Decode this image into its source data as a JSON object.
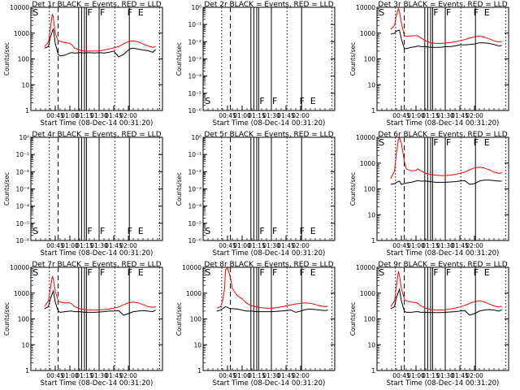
{
  "figure": {
    "x_title": "Start Time (08-Dec-14 00:31:20)",
    "y_title": "Counts/sec",
    "x_ticks": [
      "00:45",
      "01:00",
      "01:15",
      "01:30",
      "01:45",
      "02:00"
    ],
    "colors": {
      "events": "#000000",
      "lld": "#ff0000",
      "background": "#ffffff"
    }
  },
  "chart_data": [
    {
      "type": "line",
      "title": "Det 1r BLACK = Events, RED = LLD",
      "x_time_labels": [
        "00:45",
        "01:00",
        "01:15",
        "01:30",
        "01:45",
        "02:00"
      ],
      "y_scale": "log",
      "ylim": [
        1,
        10000
      ],
      "y_ticks": [
        "1",
        "10",
        "100",
        "1000",
        "10000"
      ],
      "markers": [
        "S",
        "F",
        "F",
        "F",
        "E"
      ],
      "grid": false,
      "series": [
        {
          "name": "Events",
          "color": "#000000",
          "x_min": [
            34,
            38,
            40,
            43,
            45,
            48,
            50,
            55,
            60,
            62,
            64,
            67,
            70,
            75,
            80,
            85,
            90,
            95,
            100,
            105,
            110,
            115,
            120,
            122,
            125,
            130,
            135,
            140,
            145,
            148
          ],
          "y": [
            260,
            300,
            700,
            1500,
            400,
            150,
            130,
            140,
            170,
            175,
            170,
            170,
            175,
            170,
            175,
            170,
            175,
            170,
            180,
            200,
            120,
            150,
            220,
            250,
            260,
            240,
            220,
            210,
            180,
            230
          ]
        },
        {
          "name": "LLD",
          "color": "#ff0000",
          "x_min": [
            34,
            38,
            40,
            42,
            43,
            45,
            48,
            50,
            55,
            60,
            62,
            65,
            70,
            75,
            80,
            85,
            90,
            95,
            100,
            105,
            110,
            115,
            120,
            125,
            130,
            135,
            140,
            145,
            148
          ],
          "y": [
            300,
            450,
            1500,
            5500,
            4000,
            1000,
            500,
            480,
            430,
            400,
            350,
            260,
            220,
            200,
            200,
            200,
            205,
            220,
            240,
            270,
            300,
            380,
            470,
            500,
            460,
            380,
            320,
            280,
            300
          ]
        }
      ]
    },
    {
      "type": "line",
      "title": "Det 2r BLACK = Events, RED = LLD",
      "x_time_labels": [
        "00:45",
        "01:00",
        "01:15",
        "01:30",
        "01:45",
        "02:00"
      ],
      "y_scale": "log",
      "y_ticks": [
        "10⁻⁶",
        "10⁻⁵",
        "10⁻⁴",
        "10⁻³",
        "10⁻²",
        "10⁻¹",
        "10⁰"
      ],
      "markers": [
        "S",
        "F",
        "F",
        "F",
        "E"
      ],
      "grid": false,
      "series": []
    },
    {
      "type": "line",
      "title": "Det 3r BLACK = Events, RED = LLD",
      "x_time_labels": [
        "00:45",
        "01:00",
        "01:15",
        "01:30",
        "01:45",
        "02:00"
      ],
      "y_scale": "log",
      "ylim": [
        1,
        10000
      ],
      "y_ticks": [
        "1",
        "10",
        "100",
        "1000",
        "10000"
      ],
      "markers": [
        "S",
        "F",
        "F",
        "F",
        "E"
      ],
      "grid": false,
      "series": [
        {
          "name": "Events",
          "color": "#000000",
          "x_min": [
            34,
            38,
            40,
            43,
            45,
            48,
            50,
            55,
            60,
            62,
            65,
            70,
            75,
            80,
            85,
            90,
            95,
            100,
            105,
            110,
            115,
            120,
            125,
            130,
            135,
            140,
            145,
            148
          ],
          "y": [
            900,
            1000,
            1200,
            1300,
            600,
            250,
            250,
            280,
            300,
            320,
            300,
            300,
            280,
            280,
            280,
            300,
            300,
            320,
            350,
            350,
            360,
            380,
            420,
            420,
            400,
            360,
            320,
            330
          ]
        },
        {
          "name": "LLD",
          "color": "#ff0000",
          "x_min": [
            34,
            38,
            40,
            42,
            43,
            45,
            48,
            50,
            55,
            60,
            62,
            65,
            70,
            75,
            80,
            85,
            90,
            95,
            100,
            105,
            110,
            115,
            120,
            125,
            130,
            135,
            140,
            145,
            148
          ],
          "y": [
            1400,
            2000,
            5000,
            9000,
            7000,
            2500,
            800,
            750,
            780,
            800,
            780,
            650,
            500,
            420,
            400,
            400,
            410,
            430,
            460,
            500,
            560,
            640,
            720,
            760,
            700,
            600,
            500,
            450,
            480
          ]
        }
      ]
    },
    {
      "type": "line",
      "title": "Det 4r BLACK = Events, RED = LLD",
      "x_time_labels": [
        "00:45",
        "01:00",
        "01:15",
        "01:30",
        "01:45",
        "02:00"
      ],
      "y_scale": "log",
      "y_ticks": [
        "10⁻⁶",
        "10⁻⁵",
        "10⁻⁴",
        "10⁻³",
        "10⁻²",
        "10⁻¹",
        "10⁰"
      ],
      "markers": [
        "S",
        "F",
        "F",
        "F",
        "E"
      ],
      "grid": false,
      "series": []
    },
    {
      "type": "line",
      "title": "Det 5r BLACK = Events, RED = LLD",
      "x_time_labels": [
        "00:45",
        "01:00",
        "01:15",
        "01:30",
        "01:45",
        "02:00"
      ],
      "y_scale": "log",
      "y_ticks": [
        "10⁻⁶",
        "10⁻⁵",
        "10⁻⁴",
        "10⁻³",
        "10⁻²",
        "10⁻¹",
        "10⁰"
      ],
      "markers": [
        "S",
        "F",
        "F",
        "F",
        "E"
      ],
      "grid": false,
      "series": []
    },
    {
      "type": "line",
      "title": "Det 6r BLACK = Events, RED = LLD",
      "x_time_labels": [
        "00:45",
        "01:00",
        "01:15",
        "01:30",
        "01:45",
        "02:00"
      ],
      "y_scale": "log",
      "ylim": [
        1,
        10000
      ],
      "y_ticks": [
        "1",
        "10",
        "100",
        "1000",
        "10000"
      ],
      "markers": [
        "S",
        "F",
        "F",
        "F",
        "E"
      ],
      "grid": false,
      "series": [
        {
          "name": "Events",
          "color": "#000000",
          "x_min": [
            34,
            38,
            40,
            43,
            45,
            48,
            50,
            55,
            60,
            62,
            65,
            70,
            75,
            80,
            85,
            90,
            95,
            100,
            105,
            110,
            115,
            120,
            125,
            130,
            135,
            140,
            145,
            148
          ],
          "y": [
            150,
            160,
            180,
            200,
            150,
            160,
            170,
            180,
            200,
            210,
            200,
            200,
            190,
            180,
            180,
            180,
            185,
            190,
            200,
            210,
            150,
            160,
            200,
            220,
            220,
            210,
            200,
            200
          ]
        },
        {
          "name": "LLD",
          "color": "#ff0000",
          "x_min": [
            34,
            38,
            40,
            42,
            43,
            45,
            48,
            50,
            55,
            60,
            62,
            65,
            70,
            75,
            80,
            85,
            90,
            95,
            100,
            105,
            110,
            115,
            120,
            125,
            130,
            135,
            140,
            145,
            148
          ],
          "y": [
            250,
            500,
            2500,
            8500,
            9500,
            6000,
            1200,
            600,
            500,
            520,
            600,
            500,
            400,
            360,
            340,
            330,
            330,
            340,
            360,
            400,
            450,
            550,
            650,
            700,
            650,
            550,
            450,
            400,
            420
          ]
        }
      ]
    },
    {
      "type": "line",
      "title": "Det 7r BLACK = Events, RED = LLD",
      "x_time_labels": [
        "00:45",
        "01:00",
        "01:15",
        "01:30",
        "01:45",
        "02:00"
      ],
      "y_scale": "log",
      "ylim": [
        1,
        10000
      ],
      "y_ticks": [
        "1",
        "10",
        "100",
        "1000",
        "10000"
      ],
      "markers": [
        "S",
        "F",
        "F",
        "F",
        "E"
      ],
      "grid": false,
      "series": [
        {
          "name": "Events",
          "color": "#000000",
          "x_min": [
            34,
            38,
            40,
            43,
            45,
            48,
            50,
            55,
            60,
            62,
            65,
            70,
            75,
            80,
            85,
            90,
            95,
            100,
            105,
            110,
            115,
            120,
            125,
            130,
            135,
            140,
            145,
            148
          ],
          "y": [
            250,
            300,
            600,
            1200,
            450,
            200,
            180,
            190,
            200,
            200,
            190,
            190,
            180,
            180,
            180,
            185,
            190,
            200,
            200,
            210,
            140,
            160,
            190,
            200,
            210,
            200,
            190,
            220
          ]
        },
        {
          "name": "LLD",
          "color": "#ff0000",
          "x_min": [
            34,
            38,
            40,
            42,
            43,
            45,
            48,
            50,
            55,
            60,
            62,
            65,
            70,
            75,
            80,
            85,
            90,
            95,
            100,
            105,
            110,
            115,
            120,
            125,
            130,
            135,
            140,
            145,
            148
          ],
          "y": [
            300,
            500,
            1500,
            4500,
            3500,
            1200,
            500,
            450,
            420,
            420,
            380,
            300,
            250,
            230,
            220,
            220,
            225,
            230,
            240,
            260,
            290,
            350,
            420,
            450,
            420,
            360,
            300,
            280,
            300
          ]
        }
      ]
    },
    {
      "type": "line",
      "title": "Det 8r BLACK = Events, RED = LLD",
      "x_time_labels": [
        "00:45",
        "01:00",
        "01:15",
        "01:30",
        "01:45",
        "02:00"
      ],
      "y_scale": "log",
      "ylim": [
        1,
        10000
      ],
      "y_ticks": [
        "1",
        "10",
        "100",
        "1000",
        "10000"
      ],
      "markers": [
        "S",
        "F",
        "F",
        "F",
        "E"
      ],
      "grid": false,
      "series": [
        {
          "name": "Events",
          "color": "#000000",
          "x_min": [
            34,
            38,
            40,
            43,
            45,
            48,
            50,
            55,
            60,
            62,
            65,
            70,
            75,
            80,
            85,
            90,
            95,
            100,
            105,
            110,
            115,
            120,
            125,
            130,
            135,
            140,
            145,
            148
          ],
          "y": [
            200,
            220,
            250,
            300,
            280,
            250,
            250,
            240,
            220,
            210,
            200,
            200,
            190,
            190,
            190,
            190,
            195,
            200,
            210,
            220,
            180,
            200,
            230,
            240,
            230,
            220,
            210,
            220
          ]
        },
        {
          "name": "LLD",
          "color": "#ff0000",
          "x_min": [
            34,
            38,
            40,
            42,
            43,
            45,
            48,
            50,
            55,
            60,
            62,
            65,
            70,
            75,
            80,
            85,
            90,
            95,
            100,
            105,
            110,
            115,
            120,
            125,
            130,
            135,
            140,
            145,
            148
          ],
          "y": [
            260,
            300,
            500,
            1500,
            8000,
            9500,
            4000,
            1500,
            800,
            600,
            500,
            400,
            320,
            290,
            270,
            260,
            260,
            270,
            290,
            320,
            350,
            380,
            400,
            420,
            400,
            360,
            320,
            300,
            310
          ]
        }
      ]
    },
    {
      "type": "line",
      "title": "Det 9r BLACK = Events, RED = LLD",
      "x_time_labels": [
        "00:45",
        "01:00",
        "01:15",
        "01:30",
        "01:45",
        "02:00"
      ],
      "y_scale": "log",
      "ylim": [
        1,
        10000
      ],
      "y_ticks": [
        "1",
        "10",
        "100",
        "1000",
        "10000"
      ],
      "markers": [
        "S",
        "F",
        "F",
        "F",
        "E"
      ],
      "grid": false,
      "series": [
        {
          "name": "Events",
          "color": "#000000",
          "x_min": [
            34,
            38,
            40,
            43,
            45,
            48,
            50,
            55,
            60,
            62,
            65,
            70,
            75,
            80,
            85,
            90,
            95,
            100,
            105,
            110,
            115,
            120,
            125,
            130,
            135,
            140,
            145,
            148
          ],
          "y": [
            250,
            300,
            700,
            1400,
            500,
            200,
            180,
            180,
            190,
            190,
            180,
            180,
            175,
            175,
            175,
            180,
            185,
            190,
            200,
            210,
            140,
            160,
            200,
            220,
            230,
            220,
            200,
            220
          ]
        },
        {
          "name": "LLD",
          "color": "#ff0000",
          "x_min": [
            34,
            38,
            40,
            42,
            43,
            45,
            48,
            50,
            55,
            60,
            62,
            65,
            70,
            75,
            80,
            85,
            90,
            95,
            100,
            105,
            110,
            115,
            120,
            125,
            130,
            135,
            140,
            145,
            148
          ],
          "y": [
            300,
            500,
            2000,
            7000,
            5000,
            1500,
            600,
            500,
            450,
            430,
            400,
            320,
            260,
            230,
            220,
            220,
            225,
            240,
            260,
            290,
            330,
            400,
            470,
            500,
            460,
            380,
            320,
            290,
            310
          ]
        }
      ]
    }
  ]
}
